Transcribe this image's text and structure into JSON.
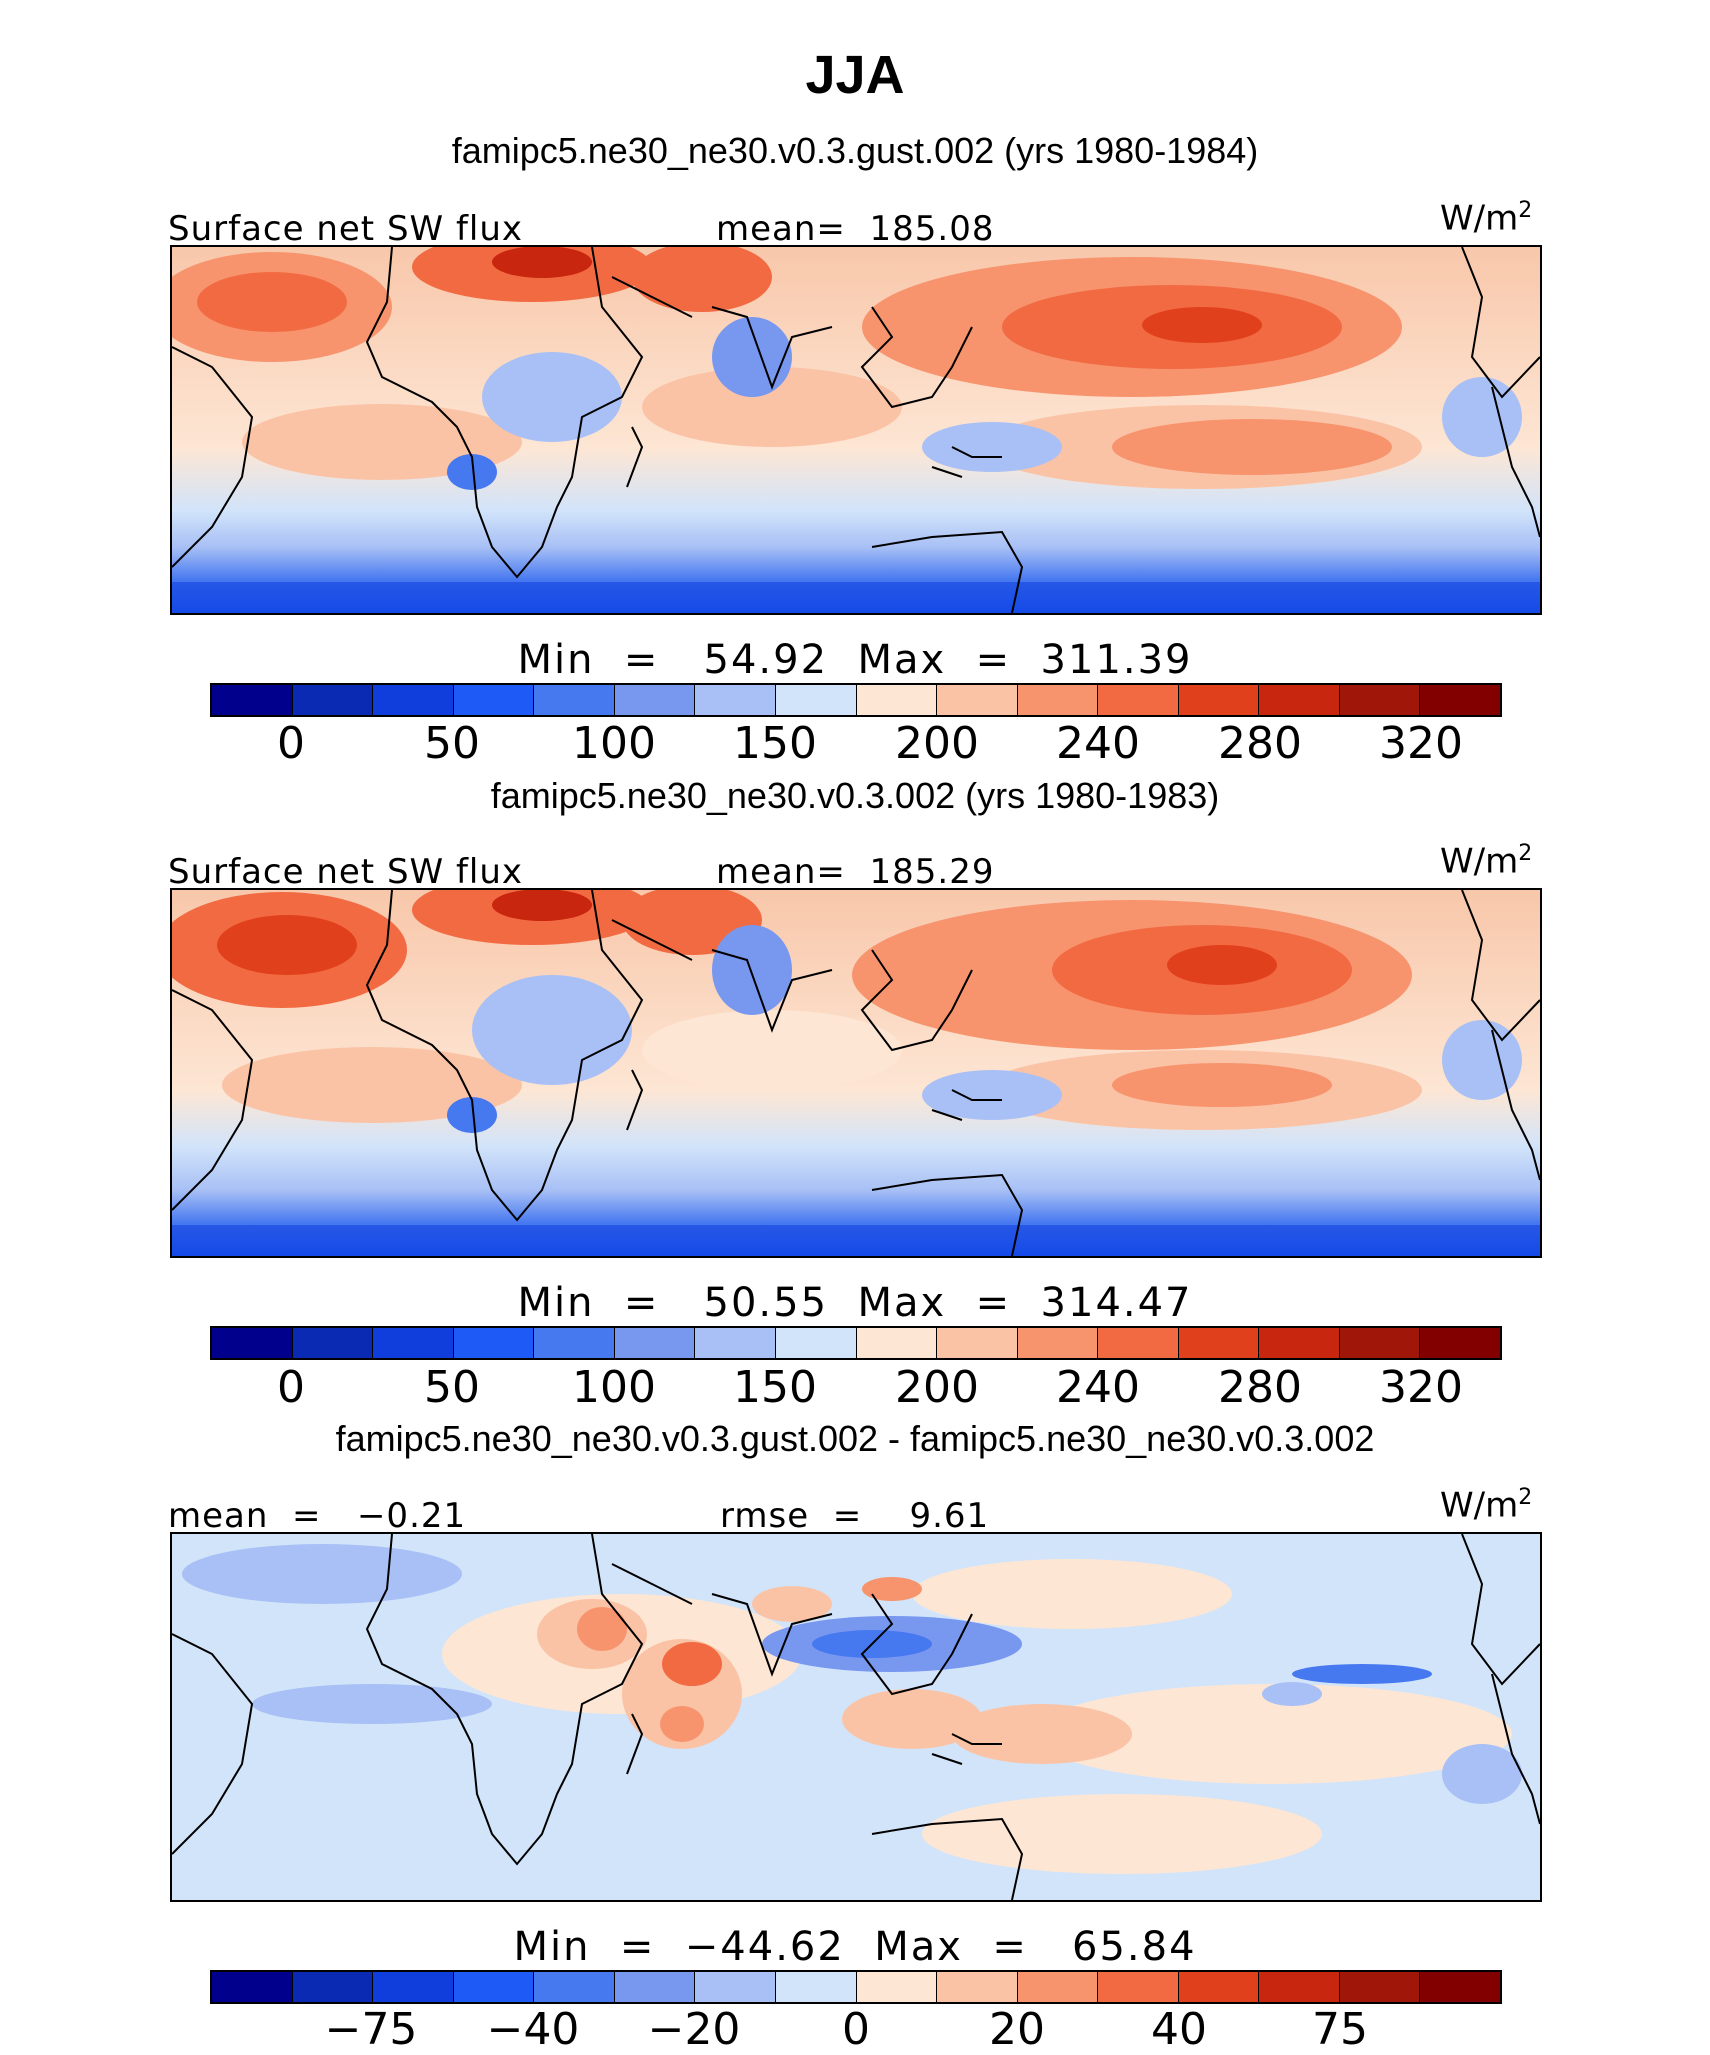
{
  "title": "JJA",
  "units": "W/m",
  "units_sup": "2",
  "panels": [
    {
      "case": "famipc5.ne30_ne30.v0.3.gust.002 (yrs 1980-1984)",
      "left_label": "Surface net SW flux",
      "center_label": "mean=  185.08",
      "min_max": "Min  =   54.92  Max  =  311.39",
      "ticks": [
        "0",
        "50",
        "100",
        "150",
        "200",
        "240",
        "280",
        "320"
      ]
    },
    {
      "case": "famipc5.ne30_ne30.v0.3.002 (yrs 1980-1983)",
      "left_label": "Surface net SW flux",
      "center_label": "mean=  185.29",
      "min_max": "Min  =   50.55  Max  =  314.47",
      "ticks": [
        "0",
        "50",
        "100",
        "150",
        "200",
        "240",
        "280",
        "320"
      ]
    },
    {
      "case": "famipc5.ne30_ne30.v0.3.gust.002 - famipc5.ne30_ne30.v0.3.002",
      "left_label": "mean  =   −0.21",
      "center_label": "rmse  =    9.61",
      "min_max": "Min  =  −44.62  Max  =   65.84",
      "ticks": [
        "−75",
        "−40",
        "−20",
        "0",
        "20",
        "40",
        "75"
      ]
    }
  ],
  "colorbar_colors": [
    "#00008c",
    "#0a2ab4",
    "#0f3edc",
    "#1e5af5",
    "#4678f0",
    "#7898f0",
    "#a8c0f5",
    "#d2e4fa",
    "#fde6d4",
    "#fbc3a6",
    "#f7946e",
    "#f26a42",
    "#e1401c",
    "#c8260f",
    "#a01608",
    "#820000"
  ]
}
